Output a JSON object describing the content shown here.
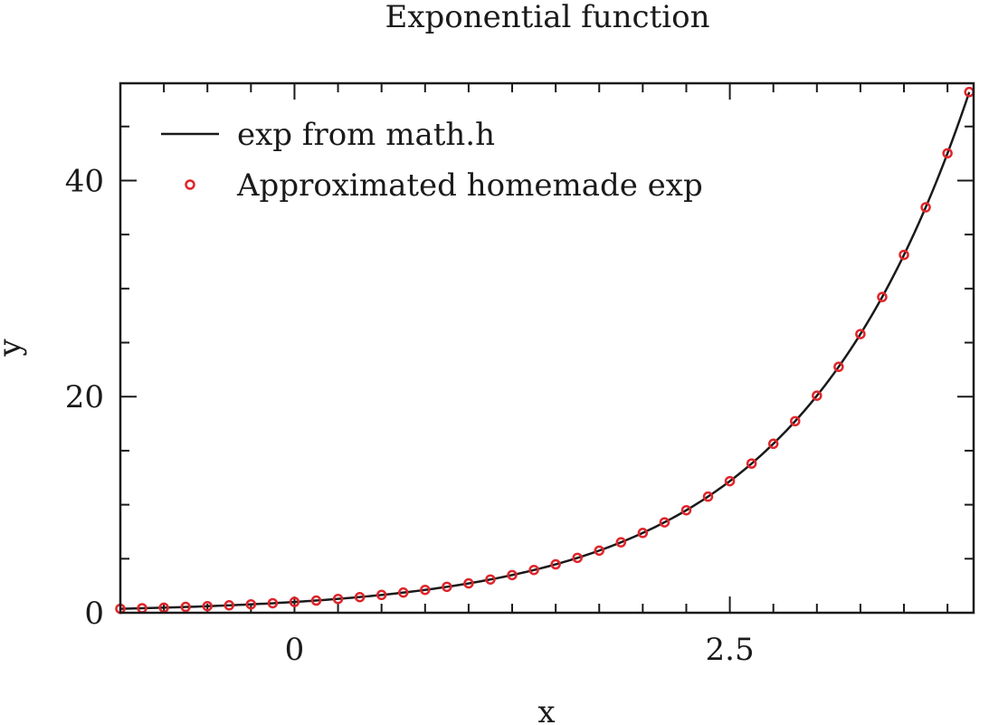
{
  "chart_data": {
    "type": "line",
    "title": "Exponential function",
    "xlabel": "x",
    "ylabel": "y",
    "xlim": [
      -1.0,
      3.9
    ],
    "ylim": [
      0,
      49
    ],
    "x_ticks": [
      {
        "value": 0,
        "label": "0"
      },
      {
        "value": 2.5,
        "label": "2.5"
      }
    ],
    "y_ticks": [
      {
        "value": 0,
        "label": "0"
      },
      {
        "value": 20,
        "label": "20"
      },
      {
        "value": 40,
        "label": "40"
      }
    ],
    "x_minor_step": 0.25,
    "y_minor_step": 5,
    "grid": false,
    "legend_position": "top-left",
    "series": [
      {
        "name": "exp from math.h",
        "style": "line",
        "color": "#1a1a1a",
        "function": "exp",
        "x_range": [
          -1.0,
          3.875
        ]
      },
      {
        "name": "Approximated homemade exp",
        "style": "markers",
        "color": "#e0252b",
        "x": [
          -1.0,
          -0.875,
          -0.75,
          -0.625,
          -0.5,
          -0.375,
          -0.25,
          -0.125,
          0.0,
          0.125,
          0.25,
          0.375,
          0.5,
          0.625,
          0.75,
          0.875,
          1.0,
          1.125,
          1.25,
          1.375,
          1.5,
          1.625,
          1.75,
          1.875,
          2.0,
          2.125,
          2.25,
          2.375,
          2.5,
          2.625,
          2.75,
          2.875,
          3.0,
          3.125,
          3.25,
          3.375,
          3.5,
          3.625,
          3.75,
          3.875
        ],
        "y": [
          0.37,
          0.42,
          0.47,
          0.54,
          0.61,
          0.69,
          0.78,
          0.88,
          1.0,
          1.13,
          1.28,
          1.45,
          1.65,
          1.87,
          2.12,
          2.4,
          2.72,
          3.08,
          3.49,
          3.96,
          4.48,
          5.08,
          5.75,
          6.52,
          7.39,
          8.37,
          9.49,
          10.75,
          12.18,
          13.81,
          15.64,
          17.73,
          20.09,
          22.76,
          25.79,
          29.22,
          33.12,
          37.52,
          42.52,
          48.19
        ]
      }
    ]
  }
}
